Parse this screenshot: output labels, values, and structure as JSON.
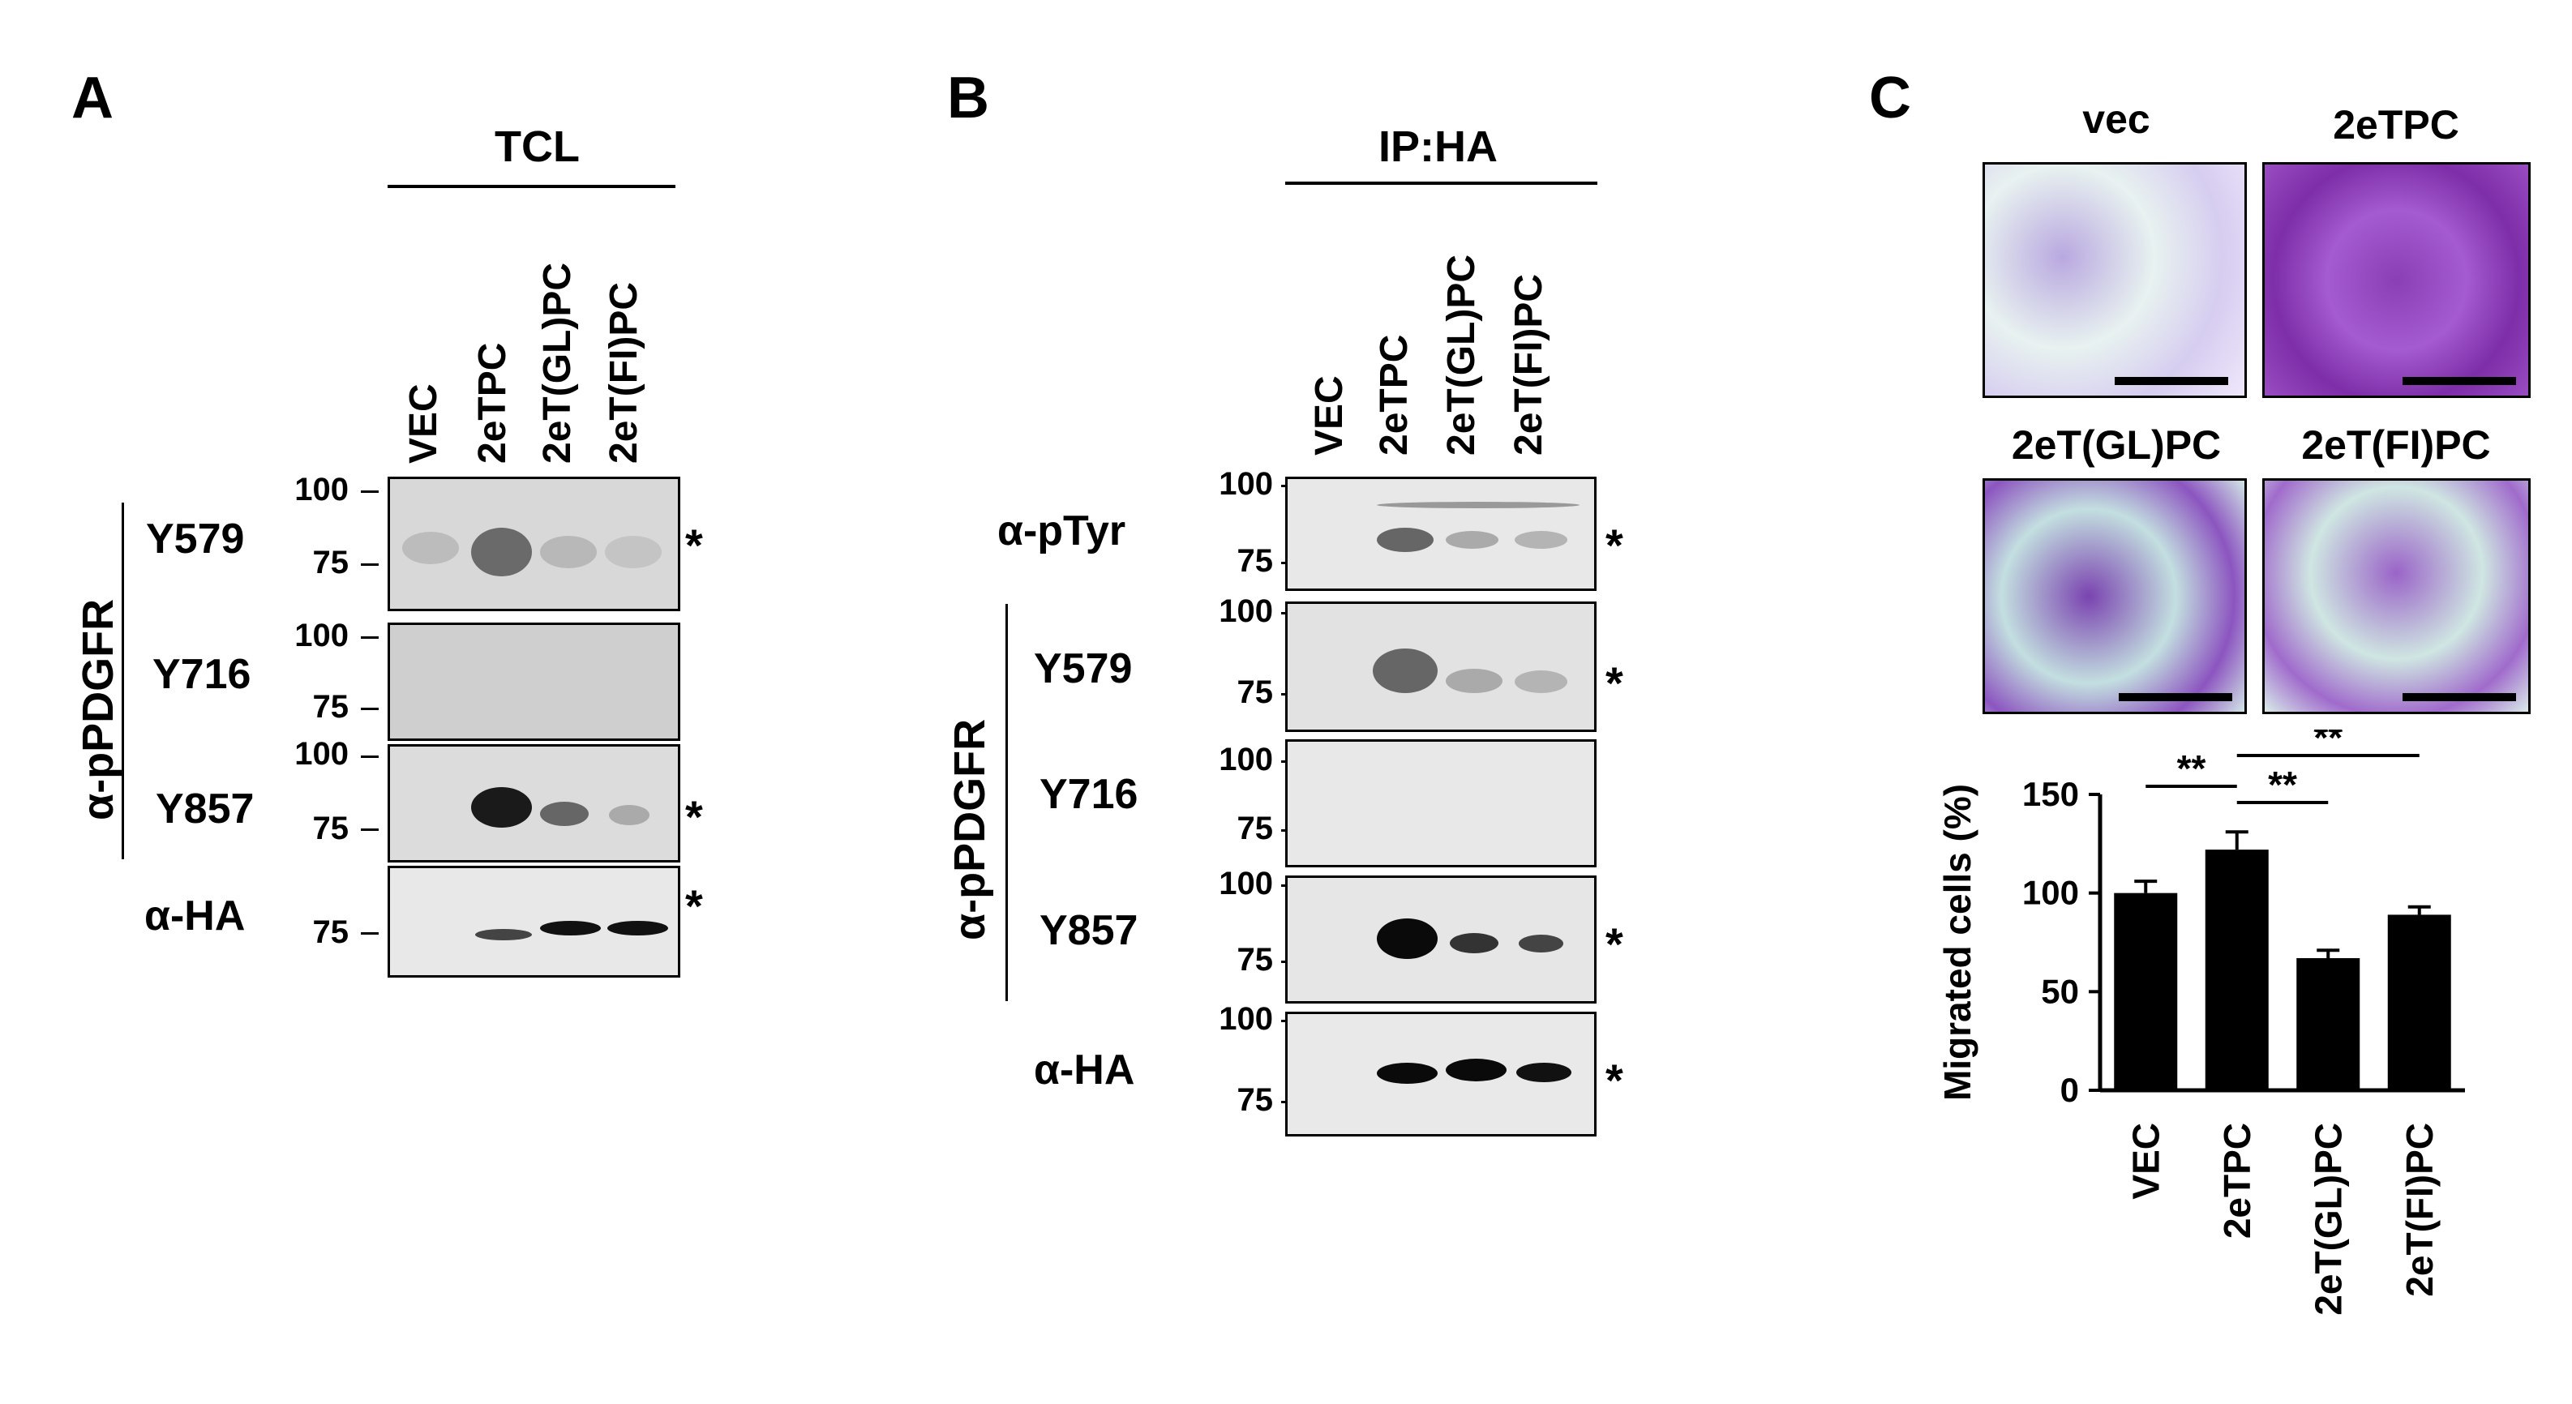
{
  "panels": {
    "A": {
      "label": "A",
      "header": "TCL",
      "lanes": [
        "VEC",
        "2eTPC",
        "2eT(GL)PC",
        "2eT(FI)PC"
      ],
      "antibody_group": "α-pPDGFR",
      "blots": [
        {
          "label": "Y579",
          "mw": [
            "100",
            "75"
          ],
          "star": "*"
        },
        {
          "label": "Y716",
          "mw": [
            "100",
            "75"
          ],
          "star": ""
        },
        {
          "label": "Y857",
          "mw": [
            "100",
            "75"
          ],
          "star": "*"
        },
        {
          "label": "α-HA",
          "mw": [
            "75"
          ],
          "star": "*"
        }
      ]
    },
    "B": {
      "label": "B",
      "header": "IP:HA",
      "lanes": [
        "VEC",
        "2eTPC",
        "2eT(GL)PC",
        "2eT(FI)PC"
      ],
      "antibody_group": "α-pPDGFR",
      "blots": [
        {
          "label": "α-pTyr",
          "mw": [
            "100",
            "75"
          ],
          "star": "*"
        },
        {
          "label": "Y579",
          "mw": [
            "100",
            "75"
          ],
          "star": "*"
        },
        {
          "label": "Y716",
          "mw": [
            "100",
            "75"
          ],
          "star": ""
        },
        {
          "label": "Y857",
          "mw": [
            "100",
            "75"
          ],
          "star": "*"
        },
        {
          "label": "α-HA",
          "mw": [
            "100",
            "75"
          ],
          "star": "*"
        }
      ]
    },
    "C": {
      "label": "C",
      "images": [
        {
          "title": "vec"
        },
        {
          "title": "2eTPC"
        },
        {
          "title": "2eT(GL)PC"
        },
        {
          "title": "2eT(FI)PC"
        }
      ],
      "significance": [
        "**",
        "**",
        "**"
      ]
    }
  },
  "chart_data": {
    "type": "bar",
    "categories": [
      "VEC",
      "2eTPC",
      "2eT(GL)PC",
      "2eT(FI)PC"
    ],
    "values": [
      100,
      122,
      67,
      89
    ],
    "errors": [
      6,
      9,
      4,
      4
    ],
    "ylabel": "Migrated cells (%)",
    "xlabel": "",
    "ylim": [
      0,
      150
    ],
    "yticks": [
      "0",
      "50",
      "100",
      "150"
    ],
    "grid": false,
    "bar_color": "#000000"
  }
}
